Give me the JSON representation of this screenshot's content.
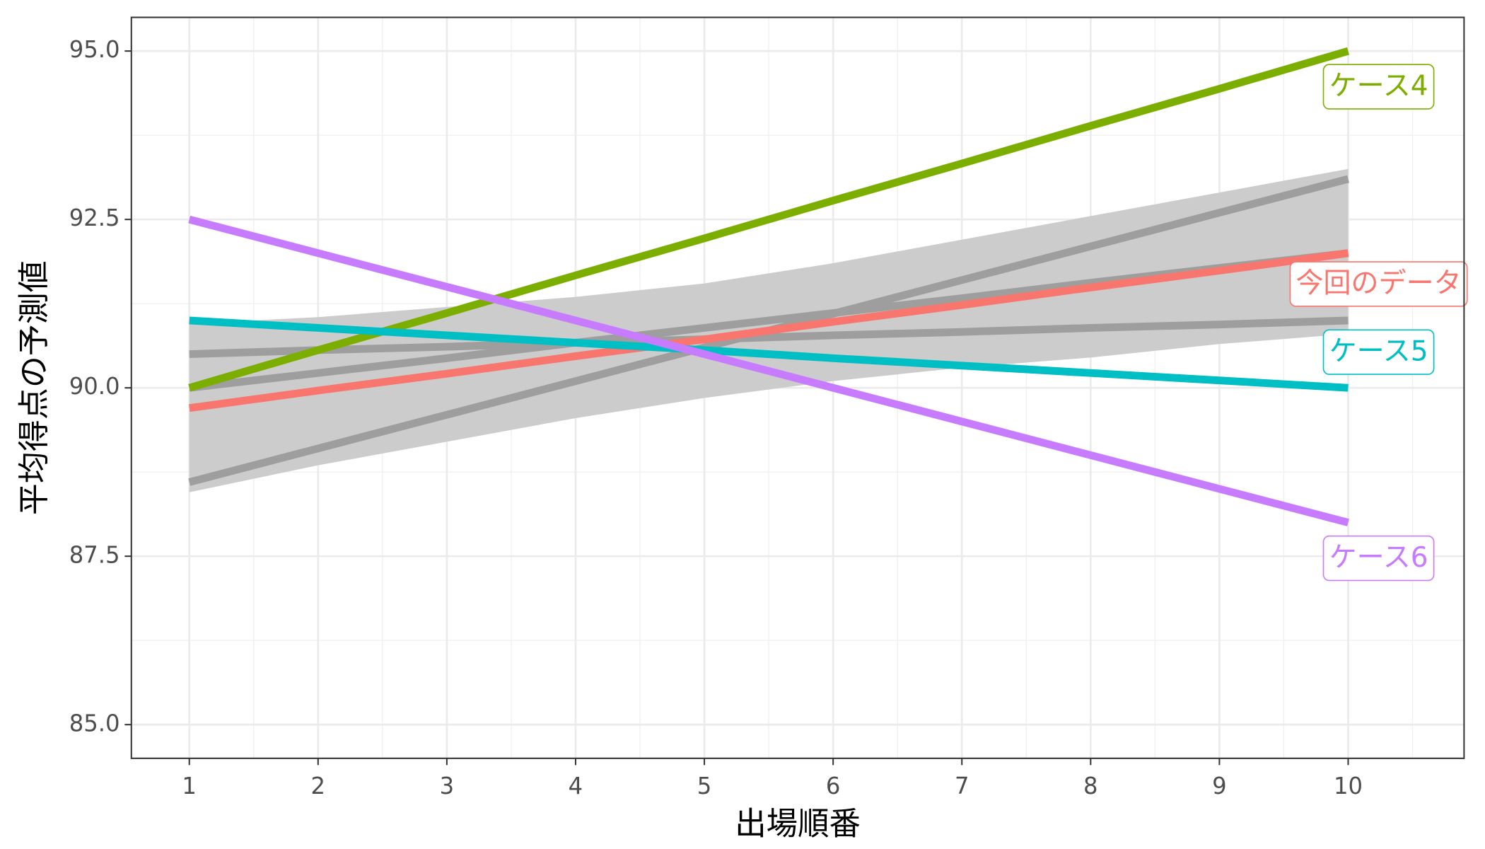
{
  "chart_data": {
    "type": "line",
    "xlabel": "出場順番",
    "ylabel": "平均得点の予測値",
    "x": [
      1,
      2,
      3,
      4,
      5,
      6,
      7,
      8,
      9,
      10
    ],
    "xlim": [
      0.55,
      10.9
    ],
    "ylim": [
      84.5,
      95.5
    ],
    "xticks": [
      1,
      2,
      3,
      4,
      5,
      6,
      7,
      8,
      9,
      10
    ],
    "yticks": [
      {
        "value": 85,
        "label": "85.0"
      },
      {
        "value": 87.5,
        "label": "87.5"
      },
      {
        "value": 90,
        "label": "90.0"
      },
      {
        "value": 92.5,
        "label": "92.5"
      },
      {
        "value": 95,
        "label": "95.0"
      }
    ],
    "grid": true,
    "ribbon": {
      "color": "#cccccc",
      "upper": [
        90.95,
        91.05,
        91.2,
        91.35,
        91.55,
        91.85,
        92.2,
        92.55,
        92.9,
        93.25
      ],
      "lower": [
        88.45,
        88.85,
        89.2,
        89.55,
        89.85,
        90.1,
        90.3,
        90.45,
        90.65,
        90.8
      ]
    },
    "series": [
      {
        "color": "#9e9e9e",
        "values": [
          90.5,
          90.56,
          90.61,
          90.67,
          90.72,
          90.78,
          90.83,
          90.89,
          90.94,
          91.0
        ]
      },
      {
        "color": "#9e9e9e",
        "values": [
          90.0,
          90.22,
          90.44,
          90.67,
          90.89,
          91.11,
          91.33,
          91.56,
          91.78,
          92.0
        ]
      },
      {
        "color": "#9e9e9e",
        "values": [
          88.6,
          89.1,
          89.6,
          90.1,
          90.6,
          91.1,
          91.6,
          92.1,
          92.6,
          93.1
        ]
      },
      {
        "name": "今回のデータ",
        "color": "#F8766D",
        "values": [
          89.7,
          89.96,
          90.21,
          90.47,
          90.72,
          90.98,
          91.23,
          91.49,
          91.74,
          92.0
        ]
      },
      {
        "name": "ケース4",
        "color": "#7CAE00",
        "values": [
          90.0,
          90.56,
          91.11,
          91.67,
          92.22,
          92.78,
          93.33,
          93.89,
          94.44,
          95.0
        ]
      },
      {
        "name": "ケース5",
        "color": "#00BFC4",
        "values": [
          91.0,
          90.89,
          90.78,
          90.67,
          90.56,
          90.44,
          90.33,
          90.22,
          90.11,
          90.0
        ]
      },
      {
        "name": "ケース6",
        "color": "#C77CFF",
        "values": [
          92.5,
          92.0,
          91.5,
          91.0,
          90.5,
          90.0,
          89.5,
          89.0,
          88.5,
          88.0
        ]
      }
    ]
  }
}
